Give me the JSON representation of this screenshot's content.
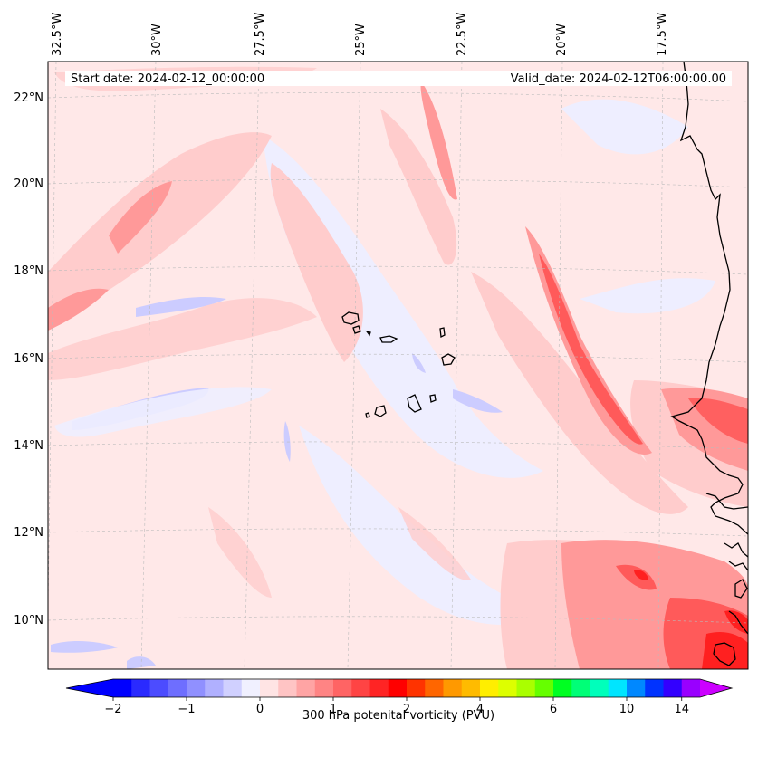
{
  "header": {
    "start_date": "Start date: 2024-02-12_00:00:00",
    "valid_date": "Valid_date: 2024-02-12T06:00:00.00"
  },
  "map": {
    "lon_labels": [
      "32.5°W",
      "30°W",
      "27.5°W",
      "25°W",
      "22.5°W",
      "20°W",
      "17.5°W"
    ],
    "lat_labels": [
      "22°N",
      "20°N",
      "18°N",
      "16°N",
      "14°N",
      "12°N",
      "10°N"
    ],
    "field": "300 hPa potential vorticity",
    "colors": {
      "neg_light": "#eeeeff",
      "neg_mid": "#ccccff",
      "pos_faint": "#ffe8e8",
      "pos_light": "#ffcccc",
      "pos_mid": "#ff9999",
      "pos_strong": "#ff5a5a",
      "pos_max": "#ff2020",
      "coast": "#000000"
    }
  },
  "colorbar": {
    "label": "300 hPa potenital vorticity (PVU)",
    "tick_labels": [
      "−2",
      "−1",
      "0",
      "1",
      "2",
      "4",
      "6",
      "10",
      "14"
    ],
    "colors": [
      "#0000ff",
      "#2a2aff",
      "#4c4cff",
      "#6e6eff",
      "#9090ff",
      "#b0b0ff",
      "#d0d0ff",
      "#f0f0ff",
      "#ffe4e4",
      "#ffc4c4",
      "#ffa4a4",
      "#ff8484",
      "#ff6464",
      "#ff4444",
      "#ff2424",
      "#ff0000",
      "#ff3300",
      "#ff6600",
      "#ff9900",
      "#ffbb00",
      "#ffee00",
      "#ddff00",
      "#aaff00",
      "#66ff00",
      "#00ff22",
      "#00ff77",
      "#00ffbb",
      "#00e5ff",
      "#0088ff",
      "#0033ff",
      "#3300ff",
      "#9900ff"
    ],
    "under_color": "#0000ff",
    "over_color": "#cc00ff"
  }
}
